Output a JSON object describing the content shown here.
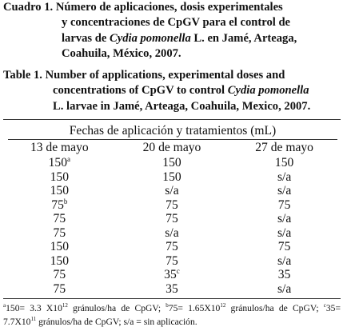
{
  "caption_es": {
    "label": "Cuadro 1.",
    "line1": "Número de aplicaciones, dosis experimentales",
    "line2": "y concentraciones de CpGV para el control de",
    "line3_pre": "larvas de ",
    "line3_italic": "Cydia pomonella",
    "line3_post": " L. en Jamé, Arteaga,",
    "line4": "Coahuila, México, 2007."
  },
  "caption_en": {
    "label": "Table 1.",
    "line1": "Number of applications, experimental doses and",
    "line2_pre": "concentrations of CpGV to control ",
    "line2_italic": "Cydia pomonella",
    "line3": "L. larvae in Jamé, Arteaga, Coahuila, Mexico, 2007."
  },
  "table": {
    "spanning_header": "Fechas de aplicación y tratamientos (mL)",
    "columns": [
      "13 de mayo",
      "20 de mayo",
      "27 de mayo"
    ],
    "rows": [
      [
        {
          "v": "150",
          "sup": "a"
        },
        {
          "v": "150"
        },
        {
          "v": "150"
        }
      ],
      [
        {
          "v": "150"
        },
        {
          "v": "150"
        },
        {
          "v": "s/a"
        }
      ],
      [
        {
          "v": "150"
        },
        {
          "v": "s/a"
        },
        {
          "v": "s/a"
        }
      ],
      [
        {
          "v": "75",
          "sup": "b"
        },
        {
          "v": "75"
        },
        {
          "v": "75"
        }
      ],
      [
        {
          "v": "75"
        },
        {
          "v": "75"
        },
        {
          "v": "s/a"
        }
      ],
      [
        {
          "v": "75"
        },
        {
          "v": "s/a"
        },
        {
          "v": "s/a"
        }
      ],
      [
        {
          "v": "150"
        },
        {
          "v": "75"
        },
        {
          "v": "75"
        }
      ],
      [
        {
          "v": "150"
        },
        {
          "v": "75"
        },
        {
          "v": "s/a"
        }
      ],
      [
        {
          "v": "75"
        },
        {
          "v": "35",
          "sup": "c"
        },
        {
          "v": "35"
        }
      ],
      [
        {
          "v": "75"
        },
        {
          "v": "35"
        },
        {
          "v": "s/a"
        }
      ]
    ]
  },
  "footnote": {
    "a_label": "a",
    "a_text1": "150= 3.3 X10",
    "a_exp": "12",
    "a_text2": " gránulos/ha de CpGV; ",
    "b_label": "b",
    "b_text1": "75= 1.65X10",
    "b_exp": "12",
    "b_text2": " gránulos/ha de CpGV; ",
    "c_label": "c",
    "c_text1": "35= 7.7X10",
    "c_exp": "11",
    "c_text2": " gránulos/ha de CpGV; s/a = sin aplicación."
  }
}
